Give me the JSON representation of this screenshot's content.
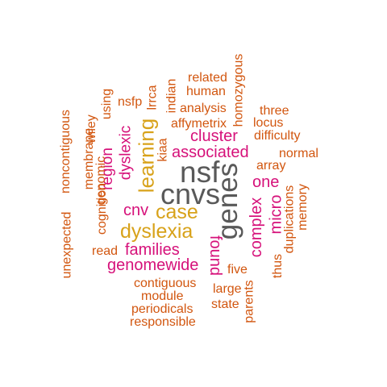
{
  "colors": {
    "gray": "#595959",
    "magenta": "#d6117a",
    "gold": "#d8a21a",
    "orange": "#d2560f"
  },
  "words": [
    {
      "text": "nsf",
      "color": "gray"
    },
    {
      "text": "cnvs",
      "color": "gray"
    },
    {
      "text": "genes",
      "color": "gray"
    },
    {
      "text": "dyslexia",
      "color": "gold"
    },
    {
      "text": "case",
      "color": "gold"
    },
    {
      "text": "learning",
      "color": "gold"
    },
    {
      "text": "associated",
      "color": "magenta"
    },
    {
      "text": "cluster",
      "color": "magenta"
    },
    {
      "text": "families",
      "color": "magenta"
    },
    {
      "text": "genomewide",
      "color": "magenta"
    },
    {
      "text": "cnv",
      "color": "magenta"
    },
    {
      "text": "one",
      "color": "magenta"
    },
    {
      "text": "complex",
      "color": "magenta"
    },
    {
      "text": "micro",
      "color": "magenta"
    },
    {
      "text": "found",
      "color": "magenta"
    },
    {
      "text": "region",
      "color": "magenta"
    },
    {
      "text": "dyslexic",
      "color": "magenta"
    },
    {
      "text": "related",
      "color": "orange"
    },
    {
      "text": "human",
      "color": "orange"
    },
    {
      "text": "analysis",
      "color": "orange"
    },
    {
      "text": "affymetrix",
      "color": "orange"
    },
    {
      "text": "three",
      "color": "orange"
    },
    {
      "text": "locus",
      "color": "orange"
    },
    {
      "text": "difficulty",
      "color": "orange"
    },
    {
      "text": "normal",
      "color": "orange"
    },
    {
      "text": "array",
      "color": "orange"
    },
    {
      "text": "nsfp",
      "color": "orange"
    },
    {
      "text": "using",
      "color": "orange"
    },
    {
      "text": "lrrca",
      "color": "orange"
    },
    {
      "text": "indian",
      "color": "orange"
    },
    {
      "text": "homozygous",
      "color": "orange"
    },
    {
      "text": "kiaa",
      "color": "orange"
    },
    {
      "text": "wiley",
      "color": "orange"
    },
    {
      "text": "noncontiguous",
      "color": "orange"
    },
    {
      "text": "membrane",
      "color": "orange"
    },
    {
      "text": "genomic",
      "color": "orange"
    },
    {
      "text": "cognition",
      "color": "orange"
    },
    {
      "text": "unexpected",
      "color": "orange"
    },
    {
      "text": "read",
      "color": "orange"
    },
    {
      "text": "contiguous",
      "color": "orange"
    },
    {
      "text": "module",
      "color": "orange"
    },
    {
      "text": "periodicals",
      "color": "orange"
    },
    {
      "text": "responsible",
      "color": "orange"
    },
    {
      "text": "five",
      "color": "orange"
    },
    {
      "text": "large",
      "color": "orange"
    },
    {
      "text": "state",
      "color": "orange"
    },
    {
      "text": "parents",
      "color": "orange"
    },
    {
      "text": "thus",
      "color": "orange"
    },
    {
      "text": "duplications",
      "color": "orange"
    },
    {
      "text": "memory",
      "color": "orange"
    }
  ]
}
